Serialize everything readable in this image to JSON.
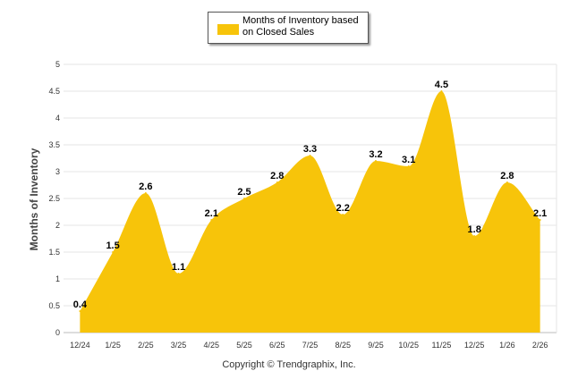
{
  "chart_data": {
    "type": "area",
    "legend": "Months of Inventory based on Closed Sales",
    "ylabel": "Months of Inventory",
    "xlabel": "",
    "categories": [
      "12/24",
      "1/25",
      "2/25",
      "3/25",
      "4/25",
      "5/25",
      "6/25",
      "7/25",
      "8/25",
      "9/25",
      "10/25",
      "11/25",
      "12/25",
      "1/26",
      "2/26"
    ],
    "values": [
      0.4,
      1.5,
      2.6,
      1.1,
      2.1,
      2.5,
      2.8,
      3.3,
      2.2,
      3.2,
      3.1,
      4.5,
      1.8,
      2.8,
      2.1
    ],
    "value_labels": [
      "0.4",
      "1.5",
      "2.6",
      "1.1",
      "2.1",
      "2.5",
      "2.8",
      "3.3",
      "2.2",
      "3.2",
      "3.1",
      "4.5",
      "1.8",
      "2.8",
      "2.1"
    ],
    "ylim": [
      0,
      5
    ],
    "yticks": [
      "0",
      "0.5",
      "1",
      "1.5",
      "2",
      "2.5",
      "3",
      "3.5",
      "4",
      "4.5",
      "5"
    ],
    "grid": true,
    "color": "#f7c40a",
    "legend_position": "top-center"
  },
  "footer": {
    "copyright": "Copyright © Trendgraphix, Inc."
  }
}
